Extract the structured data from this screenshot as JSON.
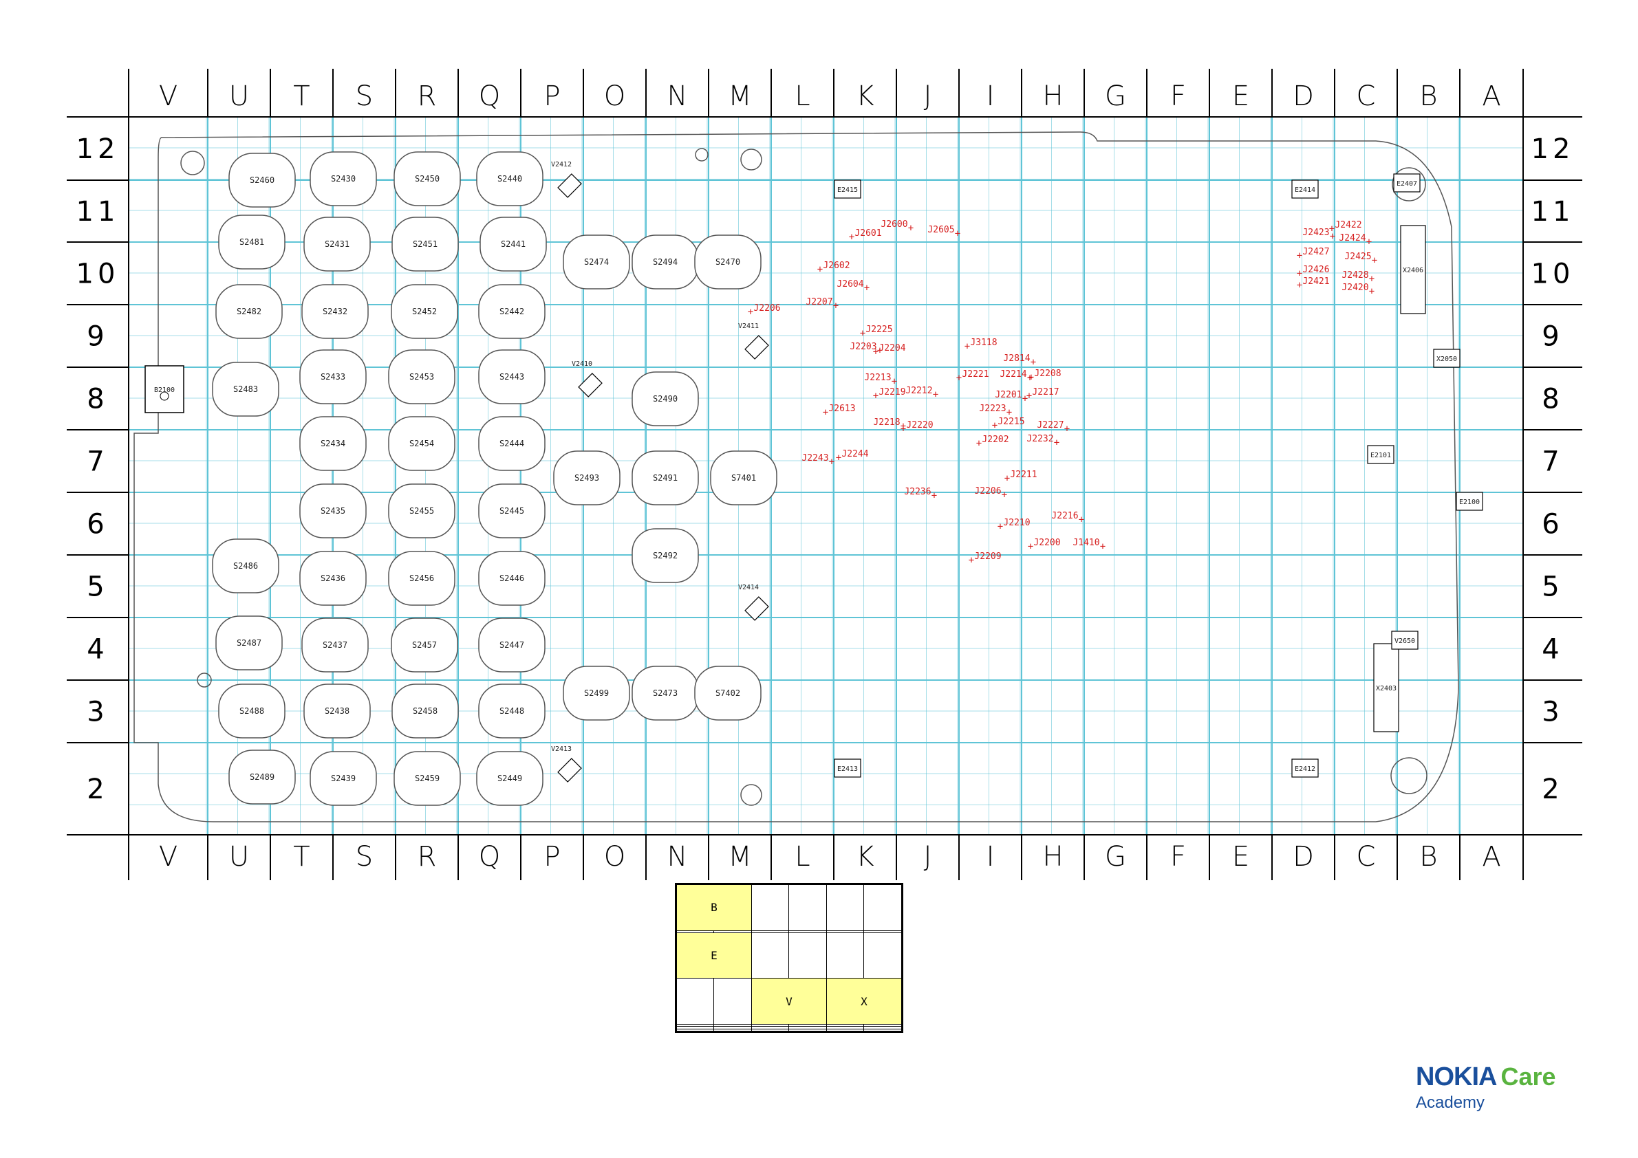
{
  "columns": [
    "V",
    "U",
    "T",
    "S",
    "R",
    "Q",
    "P",
    "O",
    "N",
    "M",
    "L",
    "K",
    "J",
    "I",
    "H",
    "G",
    "F",
    "E",
    "D",
    "C",
    "B",
    "A"
  ],
  "rows": [
    "12",
    "11",
    "10",
    "9",
    "8",
    "7",
    "6",
    "5",
    "4",
    "3",
    "2"
  ],
  "components": [
    "S2460",
    "S2430",
    "S2450",
    "S2440",
    "V2412",
    "S2481",
    "S2431",
    "S2451",
    "S2441",
    "S2474",
    "S2494",
    "S2470",
    "S2482",
    "S2432",
    "S2452",
    "S2442",
    "B2100",
    "S2483",
    "S2433",
    "S2453",
    "S2443",
    "V2410",
    "V2411",
    "S2490",
    "S2434",
    "S2454",
    "S2444",
    "S2493",
    "S2491",
    "S7401",
    "S2435",
    "S2455",
    "S2445",
    "S2492",
    "S2486",
    "S2436",
    "S2456",
    "S2446",
    "V2414",
    "S2487",
    "S2437",
    "S2457",
    "S2447",
    "S2488",
    "S2438",
    "S2458",
    "S2448",
    "S2499",
    "S2473",
    "S7402",
    "S2489",
    "S2439",
    "S2459",
    "S2449",
    "V2413",
    "E2415",
    "E2414",
    "E2413",
    "E2412",
    "E2101",
    "E2100",
    "X2050",
    "E2407",
    "X2406",
    "X2403",
    "V2650"
  ],
  "testpoints": [
    "J2600",
    "J2601",
    "J2605",
    "J2602",
    "J2604",
    "J2206",
    "J2207",
    "J2225",
    "J2203",
    "J2204",
    "J2213",
    "J2219",
    "J2212",
    "J2613",
    "J2218",
    "J2220",
    "J2243",
    "J2244",
    "J2236",
    "J3118",
    "J2814",
    "J2221",
    "J2214",
    "J2208",
    "J2201",
    "J2217",
    "J2223",
    "J2215",
    "J2227",
    "J2202",
    "J2232",
    "J2211",
    "J2206",
    "J2210",
    "J2216",
    "J2200",
    "J1410",
    "J2209",
    "J2423",
    "J2422",
    "J2424",
    "J2427",
    "J2425",
    "J2426",
    "J2428",
    "J2421",
    "J2420"
  ],
  "legend": {
    "b_label": "B",
    "e_label": "E",
    "v_label": "V",
    "x_label": "X"
  },
  "logo": {
    "brand": "NOKIA",
    "care": "Care",
    "academy": "Academy"
  },
  "colors": {
    "grid": "#5fc4d6",
    "frame": "#000000",
    "outline": "#555555",
    "testpoint": "#d62020",
    "highlight": "#ffff99"
  }
}
